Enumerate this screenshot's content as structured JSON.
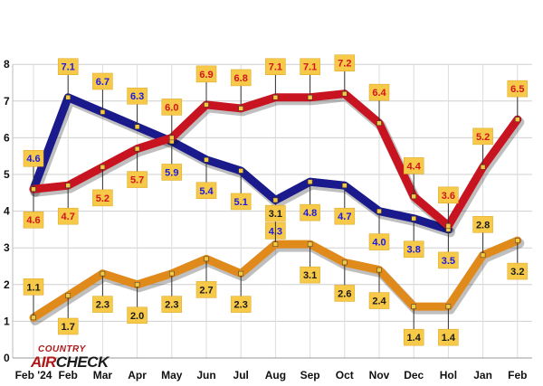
{
  "logo": {
    "line1": "COUNTRY",
    "air": "AIR",
    "check": "CHECK"
  },
  "chart_data": {
    "type": "line",
    "title": "",
    "xlabel": "",
    "ylabel": "",
    "ylim": [
      0,
      8
    ],
    "yticks": [
      "0",
      "1",
      "2",
      "3",
      "4",
      "5",
      "6",
      "7",
      "8"
    ],
    "grid": true,
    "categories": [
      "Feb '24",
      "Feb",
      "Mar",
      "Apr",
      "May",
      "Jun",
      "Jul",
      "Aug",
      "Sep",
      "Oct",
      "Nov",
      "Dec",
      "Hol",
      "Jan",
      "Feb"
    ],
    "series": [
      {
        "color": "#1a1a8c",
        "label_color": "#1a1ae6",
        "values": [
          4.6,
          7.1,
          6.7,
          6.3,
          5.9,
          5.4,
          5.1,
          4.3,
          4.8,
          4.7,
          4.0,
          3.8,
          3.5,
          null,
          null
        ],
        "labels": [
          "4.6",
          "7.1",
          "6.7",
          "6.3",
          "5.9",
          "5.4",
          "5.1",
          "4.3",
          "4.8",
          "4.7",
          "4.0",
          "3.8",
          "3.5",
          "",
          ""
        ]
      },
      {
        "color": "#c81420",
        "label_color": "#d2141e",
        "values": [
          4.6,
          4.7,
          5.2,
          5.7,
          6.0,
          6.9,
          6.8,
          7.1,
          7.1,
          7.2,
          6.4,
          4.4,
          3.6,
          5.2,
          6.5
        ],
        "labels": [
          "4.6",
          "4.7",
          "5.2",
          "5.7",
          "6.0",
          "6.9",
          "6.8",
          "7.1",
          "7.1",
          "7.2",
          "6.4",
          "4.4",
          "3.6",
          "5.2",
          "6.5"
        ]
      },
      {
        "color": "#e08a1c",
        "label_color": "#1a1a1a",
        "values": [
          1.1,
          1.7,
          2.3,
          2.0,
          2.3,
          2.7,
          2.3,
          3.1,
          3.1,
          2.6,
          2.4,
          1.4,
          1.4,
          2.8,
          3.2
        ],
        "labels": [
          "1.1",
          "1.7",
          "2.3",
          "2.0",
          "2.3",
          "2.7",
          "2.3",
          "3.1",
          "3.1",
          "2.6",
          "2.4",
          "1.4",
          "1.4",
          "2.8",
          "3.2"
        ]
      }
    ]
  }
}
